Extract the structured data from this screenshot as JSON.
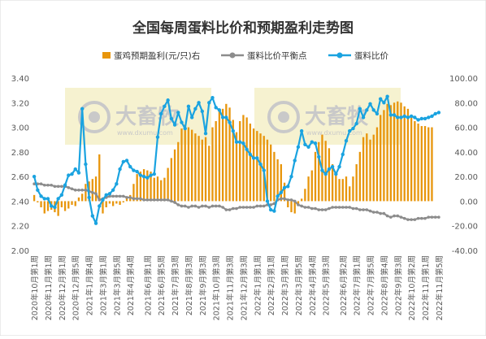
{
  "chart_data": {
    "type": "bar+line",
    "title": "全国每周蛋料比价和预期盈利走势图",
    "legend_position": "top",
    "grid": false,
    "watermark": {
      "brand": "大畜牧",
      "url": "www.dxumu.com"
    },
    "y_left": {
      "min": 2.0,
      "max": 3.4,
      "ticks": [
        "2.00",
        "2.20",
        "2.40",
        "2.60",
        "2.80",
        "3.00",
        "3.20",
        "3.40"
      ]
    },
    "y_right": {
      "min": -40,
      "max": 100,
      "ticks": [
        "-40.00",
        "-20.00",
        "0.00",
        "20.00",
        "40.00",
        "60.00",
        "80.00",
        "100.00"
      ]
    },
    "x_labels": [
      "2020年10月第1周",
      "2020年11月第1周",
      "2020年12月第1周",
      "2020年12月第5周",
      "2021年1月第4周",
      "2021年3月第1周",
      "2021年3月第5周",
      "2021年4月第4周",
      "2021年6月第1周",
      "2021年6月第5周",
      "2021年7月第3周",
      "2021年8月第3周",
      "2021年9月第3周",
      "2021年10月第3周",
      "2021年11月第3周",
      "2021年12月第3周",
      "2022年1月第1周",
      "2022年2月第1周",
      "2022年3月第1周",
      "2022年3月第5周",
      "2022年4月第4周",
      "2022年5月第3周",
      "2022年6月第2周",
      "2022年7月第1周",
      "2022年7月第5周",
      "2022年8月第4周",
      "2022年9月第3周",
      "2022年10月第2周",
      "2022年11月第1周",
      "2022年11月第5周"
    ],
    "series": [
      {
        "name": "蛋鸡预期盈利(元/只)右",
        "type": "bar",
        "axis": "right",
        "color": "#E8960C",
        "values": [
          5,
          -1,
          -5,
          -10,
          -8,
          -7,
          -9,
          -12,
          -5,
          -8,
          -6,
          -3,
          -4,
          3,
          6,
          14,
          16,
          18,
          20,
          38,
          -10,
          -5,
          -2,
          -4,
          -2,
          -3,
          -1,
          4,
          5,
          14,
          22,
          24,
          26,
          25,
          24,
          19,
          20,
          17,
          19,
          27,
          35,
          42,
          48,
          59,
          62,
          60,
          58,
          55,
          53,
          50,
          52,
          45,
          60,
          65,
          73,
          75,
          79,
          76,
          66,
          56,
          65,
          70,
          68,
          63,
          59,
          57,
          55,
          53,
          50,
          46,
          40,
          34,
          30,
          15,
          -5,
          -9,
          -10,
          -4,
          2,
          10,
          20,
          25,
          40,
          48,
          54,
          49,
          43,
          30,
          22,
          18,
          18,
          20,
          12,
          20,
          30,
          40,
          52,
          55,
          50,
          54,
          60,
          70,
          74,
          79,
          78,
          80,
          81,
          80,
          77,
          75,
          70,
          65,
          63,
          61,
          61,
          60,
          60
        ]
      },
      {
        "name": "蛋料比价平衡点",
        "type": "line",
        "axis": "left",
        "color": "#8C8C8C",
        "values": [
          2.54,
          2.54,
          2.54,
          2.53,
          2.53,
          2.53,
          2.52,
          2.52,
          2.52,
          2.52,
          2.51,
          2.5,
          2.49,
          2.49,
          2.49,
          2.49,
          2.48,
          2.47,
          2.46,
          2.41,
          2.42,
          2.43,
          2.44,
          2.44,
          2.44,
          2.44,
          2.44,
          2.43,
          2.43,
          2.42,
          2.42,
          2.42,
          2.41,
          2.41,
          2.41,
          2.41,
          2.41,
          2.41,
          2.41,
          2.41,
          2.4,
          2.39,
          2.37,
          2.36,
          2.36,
          2.35,
          2.36,
          2.36,
          2.35,
          2.36,
          2.36,
          2.35,
          2.36,
          2.36,
          2.36,
          2.35,
          2.33,
          2.33,
          2.34,
          2.34,
          2.35,
          2.35,
          2.35,
          2.35,
          2.35,
          2.36,
          2.36,
          2.36,
          2.37,
          2.37,
          2.38,
          2.41,
          2.42,
          2.42,
          2.41,
          2.41,
          2.4,
          2.37,
          2.36,
          2.35,
          2.35,
          2.34,
          2.34,
          2.33,
          2.33,
          2.33,
          2.34,
          2.35,
          2.35,
          2.35,
          2.35,
          2.35,
          2.35,
          2.34,
          2.34,
          2.33,
          2.33,
          2.33,
          2.32,
          2.31,
          2.31,
          2.3,
          2.3,
          2.28,
          2.27,
          2.28,
          2.28,
          2.27,
          2.26,
          2.25,
          2.25,
          2.25,
          2.26,
          2.26,
          2.26,
          2.27,
          2.27,
          2.27,
          2.27
        ]
      },
      {
        "name": "蛋料比价",
        "type": "line",
        "axis": "left",
        "color": "#1AA3E0",
        "values": [
          2.6,
          2.49,
          2.44,
          2.42,
          2.42,
          2.36,
          2.35,
          2.42,
          2.45,
          2.53,
          2.61,
          2.62,
          2.66,
          2.63,
          3.15,
          2.7,
          2.43,
          2.28,
          2.22,
          2.36,
          2.41,
          2.45,
          2.46,
          2.49,
          2.54,
          2.66,
          2.72,
          2.73,
          2.68,
          2.65,
          2.64,
          2.61,
          2.6,
          2.59,
          2.61,
          2.62,
          2.92,
          3.11,
          3.17,
          3.22,
          3.07,
          3.02,
          3.12,
          3.04,
          2.99,
          3.17,
          3.08,
          3.15,
          3.2,
          3.13,
          2.95,
          3.2,
          3.24,
          3.16,
          3.14,
          3.08,
          3.08,
          3.04,
          2.97,
          2.88,
          2.88,
          2.87,
          2.82,
          2.78,
          2.75,
          2.75,
          2.7,
          2.65,
          2.4,
          2.33,
          2.32,
          2.44,
          2.47,
          2.51,
          2.52,
          2.6,
          2.73,
          2.84,
          2.97,
          2.86,
          2.84,
          2.88,
          2.87,
          2.76,
          2.65,
          2.62,
          2.66,
          2.68,
          2.62,
          2.68,
          2.78,
          2.89,
          2.97,
          2.99,
          3.03,
          3.15,
          3.08,
          3.14,
          3.19,
          3.14,
          3.11,
          3.23,
          3.2,
          3.25,
          3.1,
          3.1,
          3.08,
          3.08,
          3.09,
          3.08,
          3.09,
          3.08,
          3.06,
          3.07,
          3.07,
          3.08,
          3.09,
          3.11,
          3.12
        ]
      }
    ]
  }
}
